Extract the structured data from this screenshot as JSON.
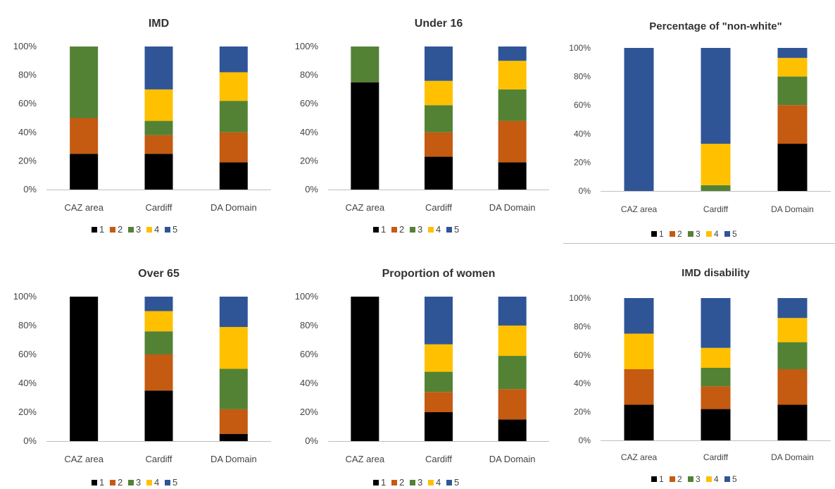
{
  "legend_labels": [
    "1",
    "2",
    "3",
    "4",
    "5"
  ],
  "colors": [
    "#000000",
    "#c55a11",
    "#548235",
    "#ffc000",
    "#2f5597"
  ],
  "chart_data": [
    {
      "type": "bar",
      "stacked": true,
      "title": "IMD",
      "categories": [
        "CAZ area",
        "Cardiff",
        "DA Domain"
      ],
      "ylim": [
        0,
        100
      ],
      "yticks": [
        "0%",
        "20%",
        "40%",
        "60%",
        "80%",
        "100%"
      ],
      "legend": "bottom",
      "series": [
        {
          "name": "1",
          "values": [
            25,
            25,
            19
          ]
        },
        {
          "name": "2",
          "values": [
            25,
            13,
            21
          ]
        },
        {
          "name": "3",
          "values": [
            50,
            10,
            22
          ]
        },
        {
          "name": "4",
          "values": [
            0,
            22,
            20
          ]
        },
        {
          "name": "5",
          "values": [
            0,
            30,
            18
          ]
        }
      ]
    },
    {
      "type": "bar",
      "stacked": true,
      "title": "Under 16",
      "categories": [
        "CAZ area",
        "Cardiff",
        "DA Domain"
      ],
      "ylim": [
        0,
        100
      ],
      "yticks": [
        "0%",
        "20%",
        "40%",
        "60%",
        "80%",
        "100%"
      ],
      "legend": "bottom",
      "series": [
        {
          "name": "1",
          "values": [
            75,
            23,
            19
          ]
        },
        {
          "name": "2",
          "values": [
            0,
            17,
            29
          ]
        },
        {
          "name": "3",
          "values": [
            25,
            19,
            22
          ]
        },
        {
          "name": "4",
          "values": [
            0,
            17,
            20
          ]
        },
        {
          "name": "5",
          "values": [
            0,
            24,
            10
          ]
        }
      ]
    },
    {
      "type": "bar",
      "stacked": true,
      "title": "Percentage of \"non-white\"",
      "categories": [
        "CAZ area",
        "Cardiff",
        "DA Domain"
      ],
      "ylim": [
        0,
        100
      ],
      "yticks": [
        "0%",
        "20%",
        "40%",
        "60%",
        "80%",
        "100%"
      ],
      "legend": "bottom",
      "series": [
        {
          "name": "1",
          "values": [
            0,
            0,
            33
          ]
        },
        {
          "name": "2",
          "values": [
            0,
            0,
            27
          ]
        },
        {
          "name": "3",
          "values": [
            0,
            4,
            20
          ]
        },
        {
          "name": "4",
          "values": [
            0,
            29,
            13
          ]
        },
        {
          "name": "5",
          "values": [
            100,
            67,
            7
          ]
        }
      ]
    },
    {
      "type": "bar",
      "stacked": true,
      "title": "Over 65",
      "categories": [
        "CAZ area",
        "Cardiff",
        "DA Domain"
      ],
      "ylim": [
        0,
        100
      ],
      "yticks": [
        "0%",
        "20%",
        "40%",
        "60%",
        "80%",
        "100%"
      ],
      "legend": "bottom",
      "series": [
        {
          "name": "1",
          "values": [
            100,
            35,
            5
          ]
        },
        {
          "name": "2",
          "values": [
            0,
            25,
            17
          ]
        },
        {
          "name": "3",
          "values": [
            0,
            16,
            28
          ]
        },
        {
          "name": "4",
          "values": [
            0,
            14,
            29
          ]
        },
        {
          "name": "5",
          "values": [
            0,
            10,
            21
          ]
        }
      ]
    },
    {
      "type": "bar",
      "stacked": true,
      "title": "Proportion of women",
      "categories": [
        "CAZ area",
        "Cardiff",
        "DA Domain"
      ],
      "ylim": [
        0,
        100
      ],
      "yticks": [
        "0%",
        "20%",
        "40%",
        "60%",
        "80%",
        "100%"
      ],
      "legend": "bottom",
      "series": [
        {
          "name": "1",
          "values": [
            100,
            20,
            15
          ]
        },
        {
          "name": "2",
          "values": [
            0,
            14,
            21
          ]
        },
        {
          "name": "3",
          "values": [
            0,
            14,
            23
          ]
        },
        {
          "name": "4",
          "values": [
            0,
            19,
            21
          ]
        },
        {
          "name": "5",
          "values": [
            0,
            33,
            20
          ]
        }
      ]
    },
    {
      "type": "bar",
      "stacked": true,
      "title": "IMD disability",
      "categories": [
        "CAZ area",
        "Cardiff",
        "DA Domain"
      ],
      "ylim": [
        0,
        100
      ],
      "yticks": [
        "0%",
        "20%",
        "40%",
        "60%",
        "80%",
        "100%"
      ],
      "legend": "bottom",
      "series": [
        {
          "name": "1",
          "values": [
            25,
            22,
            25
          ]
        },
        {
          "name": "2",
          "values": [
            25,
            16,
            25
          ]
        },
        {
          "name": "3",
          "values": [
            0,
            13,
            19
          ]
        },
        {
          "name": "4",
          "values": [
            25,
            14,
            17
          ]
        },
        {
          "name": "5",
          "values": [
            25,
            35,
            14
          ]
        }
      ]
    }
  ]
}
